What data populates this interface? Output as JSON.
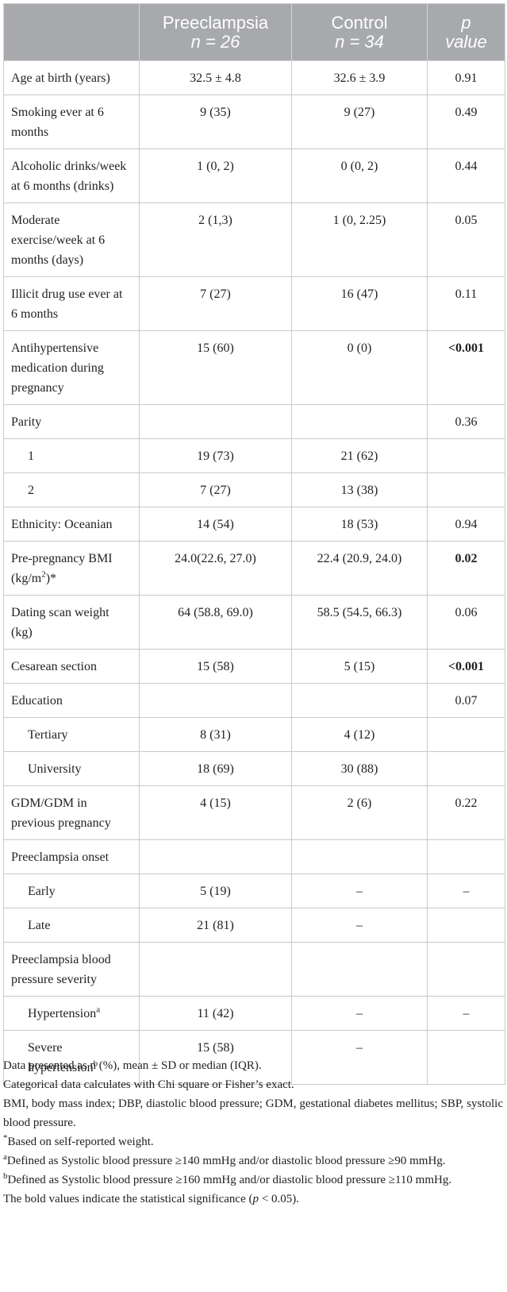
{
  "header": {
    "col1": "",
    "col2_line1": "Preeclampsia",
    "col2_line2": "n = 26",
    "col3_line1": "Control",
    "col3_line2": "n = 34",
    "col4_line1": "p",
    "col4_line2": "value"
  },
  "rows": [
    {
      "label": "Age at birth (years)",
      "pre": "32.5 ± 4.8",
      "ctrl": "32.6 ± 3.9",
      "p": "0.91"
    },
    {
      "label": "Smoking ever at 6 months",
      "pre": "9 (35)",
      "ctrl": "9 (27)",
      "p": "0.49"
    },
    {
      "label": "Alcoholic drinks/week at 6 months (drinks)",
      "pre": "1 (0, 2)",
      "ctrl": "0 (0, 2)",
      "p": "0.44"
    },
    {
      "label": "Moderate exercise/week at 6 months (days)",
      "pre": "2 (1,3)",
      "ctrl": "1 (0, 2.25)",
      "p": "0.05"
    },
    {
      "label": "Illicit drug use ever at 6 months",
      "pre": "7 (27)",
      "ctrl": "16 (47)",
      "p": "0.11"
    },
    {
      "label": "Antihypertensive medication during pregnancy",
      "pre": "15 (60)",
      "ctrl": "0 (0)",
      "p": "<0.001"
    },
    {
      "label": "Parity",
      "pre": "",
      "ctrl": "",
      "p": "0.36"
    },
    {
      "label": "1",
      "pre": "19 (73)",
      "ctrl": "21 (62)",
      "p": ""
    },
    {
      "label": "2",
      "pre": "7 (27)",
      "ctrl": "13 (38)",
      "p": ""
    },
    {
      "label": "Ethnicity: Oceanian",
      "pre": "14 (54)",
      "ctrl": "18 (53)",
      "p": "0.94"
    },
    {
      "label": "Pre-pregnancy BMI (kg/m",
      "label_sup": "2",
      "label_after": ")*",
      "pre": "24.0(22.6, 27.0)",
      "ctrl": "22.4 (20.9, 24.0)",
      "p": "0.02"
    },
    {
      "label": "Dating scan weight (kg)",
      "pre": "64 (58.8, 69.0)",
      "ctrl": "58.5 (54.5, 66.3)",
      "p": "0.06"
    },
    {
      "label": "Cesarean section",
      "pre": "15 (58)",
      "ctrl": "5 (15)",
      "p": "<0.001"
    },
    {
      "label": "Education",
      "pre": "",
      "ctrl": "",
      "p": "0.07"
    },
    {
      "label": "Tertiary",
      "pre": "8 (31)",
      "ctrl": "4 (12)",
      "p": ""
    },
    {
      "label": "University",
      "pre": "18 (69)",
      "ctrl": "30 (88)",
      "p": ""
    },
    {
      "label": "GDM/GDM in previous pregnancy",
      "pre": "4 (15)",
      "ctrl": "2 (6)",
      "p": "0.22"
    },
    {
      "label": "Preeclampsia onset",
      "pre": "",
      "ctrl": "",
      "p": ""
    },
    {
      "label": "Early",
      "pre": "5 (19)",
      "ctrl": "–",
      "p": "–"
    },
    {
      "label": "Late",
      "pre": "21 (81)",
      "ctrl": "–",
      "p": ""
    },
    {
      "label": "Preeclampsia blood pressure severity",
      "pre": "",
      "ctrl": "",
      "p": ""
    },
    {
      "label": "Hypertension",
      "label_sup": "a",
      "pre": "11 (42)",
      "ctrl": "–",
      "p": "–"
    },
    {
      "label": "Severe hypertension",
      "label_sup": "b",
      "pre": "15 (58)",
      "ctrl": "–",
      "p": ""
    }
  ],
  "notes": {
    "n1": "Data presented as n (%), mean ± SD or median (IQR).",
    "n2": "Categorical data calculates with Chi square or Fisher’s exact.",
    "n3": "BMI, body mass index; DBP, diastolic blood pressure; GDM, gestational diabetes mellitus; SBP, systolic blood pressure.",
    "n4_mark": "*",
    "n4": "Based on self-reported weight.",
    "n5_mark": "a",
    "n5": "Defined as Systolic blood pressure ≥140 mmHg and/or diastolic blood pressure ≥90 mmHg.",
    "n6_mark": "b",
    "n6": "Defined as Systolic blood pressure ≥160 mmHg and/or diastolic blood pressure ≥110 mmHg.",
    "n7_before": "The bold values indicate the statistical significance (",
    "n7_p": "p",
    "n7_after": " < 0.05)."
  }
}
